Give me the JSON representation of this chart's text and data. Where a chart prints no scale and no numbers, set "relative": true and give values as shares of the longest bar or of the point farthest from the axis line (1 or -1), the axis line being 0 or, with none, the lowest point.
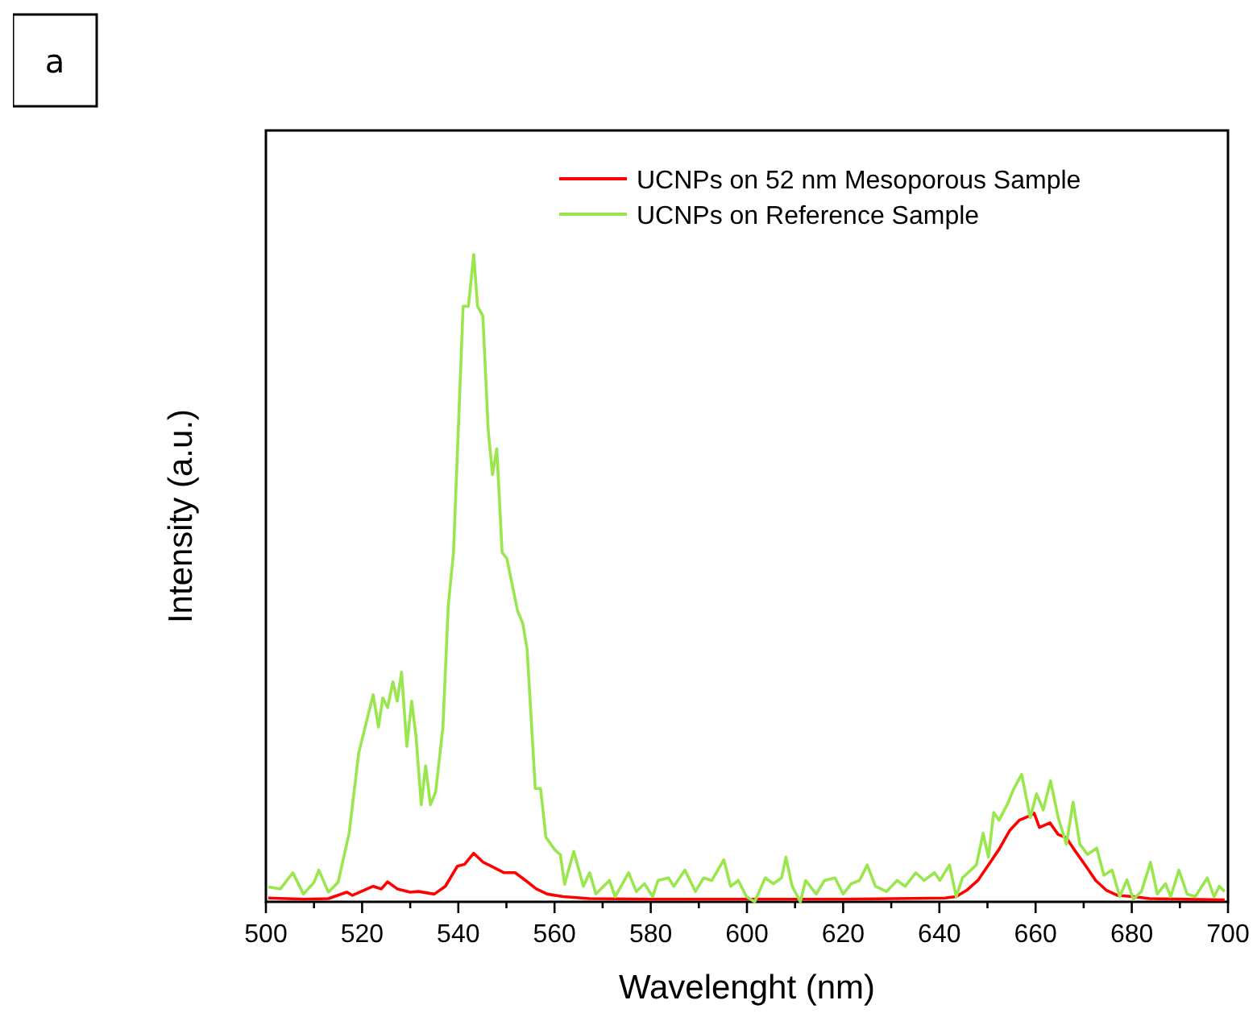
{
  "chart_data": {
    "type": "line",
    "relative": true,
    "xlabel": "Wavelenght (nm)",
    "ylabel": "Intensity (a.u.)",
    "annotations": [
      "a"
    ],
    "xlim": [
      500,
      700
    ],
    "xticks": [
      500,
      {
        "value": 510,
        "label": null
      },
      520,
      {
        "value": 530,
        "label": null
      },
      540,
      {
        "value": 550,
        "label": null
      },
      560,
      {
        "value": 570,
        "label": null
      },
      580,
      {
        "value": 590,
        "label": null
      },
      600,
      {
        "value": 610,
        "label": null
      },
      620,
      {
        "value": 630,
        "label": null
      },
      640,
      {
        "value": 650,
        "label": null
      },
      660,
      {
        "value": 670,
        "label": null
      },
      680,
      {
        "value": 690,
        "label": null
      },
      700
    ],
    "legend": "top right",
    "grid": false,
    "line_style": "solid",
    "series": [
      {
        "name": "UCNPs on 52 nm Mesoporous Sample",
        "color": "#ff0000",
        "x": [
          500.5,
          508,
          513,
          516.8,
          518,
          522.3,
          524,
          525.3,
          527.3,
          530,
          531.7,
          535,
          537.3,
          539.8,
          541.3,
          543.2,
          545.2,
          547.4,
          549.5,
          551.8,
          554,
          556.2,
          558.5,
          561.8,
          567.3,
          580,
          600,
          620,
          641.2,
          643.5,
          645.7,
          648,
          650.2,
          652.4,
          654.6,
          656.6,
          658.5,
          659.7,
          660.8,
          663,
          664.7,
          666.4,
          668,
          670.3,
          672.5,
          674.7,
          677,
          680.3,
          683.7,
          699.3
        ],
        "values": [
          0.006,
          0.004,
          0.005,
          0.015,
          0.01,
          0.024,
          0.02,
          0.031,
          0.02,
          0.015,
          0.016,
          0.012,
          0.024,
          0.055,
          0.058,
          0.075,
          0.061,
          0.053,
          0.045,
          0.045,
          0.033,
          0.02,
          0.012,
          0.008,
          0.005,
          0.004,
          0.004,
          0.004,
          0.006,
          0.008,
          0.018,
          0.033,
          0.057,
          0.081,
          0.11,
          0.126,
          0.132,
          0.137,
          0.115,
          0.122,
          0.104,
          0.099,
          0.081,
          0.057,
          0.033,
          0.018,
          0.01,
          0.008,
          0.005,
          0.003
        ]
      },
      {
        "name": "UCNPs on Reference Sample",
        "color": "#99e64d",
        "x": [
          500.5,
          503,
          505.6,
          507.8,
          510,
          511,
          513,
          515,
          517.3,
          519.3,
          522.3,
          523.4,
          524.3,
          525.3,
          526.4,
          527.3,
          528.2,
          529.3,
          530.3,
          531.2,
          532.3,
          533.2,
          534.2,
          535.3,
          536.8,
          537.9,
          539,
          541,
          542.1,
          543.2,
          544,
          545.1,
          546.2,
          547.1,
          548,
          549.1,
          550.1,
          551.2,
          552.3,
          553.4,
          554.3,
          556,
          557.1,
          558.2,
          560.1,
          561.2,
          562.1,
          564,
          566,
          567.3,
          568.6,
          571.4,
          572.6,
          575.4,
          577,
          578.7,
          580.4,
          581.5,
          583.7,
          584.8,
          587.1,
          589.3,
          591,
          592.7,
          595.2,
          596.6,
          598.2,
          599.9,
          601.6,
          603.8,
          605.5,
          607.2,
          608.1,
          609.4,
          611.1,
          612.2,
          614.4,
          616.1,
          618.3,
          620,
          621.7,
          623.4,
          625,
          626.7,
          629,
          631.2,
          632.9,
          635.1,
          636.8,
          639,
          640.1,
          642.1,
          643.5,
          644.8,
          647.7,
          649.1,
          650.2,
          651.3,
          652.4,
          654.1,
          655.5,
          657.1,
          658.9,
          660.2,
          661.6,
          663.1,
          664.7,
          666.4,
          667.8,
          669.2,
          670.8,
          672.7,
          674.2,
          675.9,
          677.5,
          679,
          680.3,
          682,
          683.9,
          685.3,
          687,
          688.1,
          689.8,
          691.5,
          693.2,
          695.7,
          697.1,
          698.2,
          699.3
        ],
        "values": [
          0.023,
          0.02,
          0.045,
          0.012,
          0.03,
          0.049,
          0.015,
          0.03,
          0.106,
          0.23,
          0.32,
          0.27,
          0.315,
          0.3,
          0.34,
          0.31,
          0.355,
          0.24,
          0.31,
          0.256,
          0.15,
          0.21,
          0.15,
          0.17,
          0.27,
          0.456,
          0.54,
          0.92,
          0.92,
          1,
          0.92,
          0.905,
          0.73,
          0.66,
          0.7,
          0.54,
          0.53,
          0.49,
          0.45,
          0.43,
          0.39,
          0.175,
          0.175,
          0.1,
          0.08,
          0.073,
          0.027,
          0.078,
          0.024,
          0.045,
          0.012,
          0.033,
          0.008,
          0.045,
          0.016,
          0.028,
          0.008,
          0.033,
          0.037,
          0.024,
          0.049,
          0.016,
          0.037,
          0.033,
          0.065,
          0.024,
          0.033,
          0.008,
          0,
          0.037,
          0.028,
          0.037,
          0.069,
          0.024,
          0,
          0.033,
          0.012,
          0.033,
          0.037,
          0.012,
          0.028,
          0.033,
          0.057,
          0.024,
          0.016,
          0.033,
          0.024,
          0.045,
          0.033,
          0.045,
          0.033,
          0.057,
          0.008,
          0.037,
          0.057,
          0.106,
          0.069,
          0.138,
          0.126,
          0.15,
          0.175,
          0.197,
          0.13,
          0.167,
          0.142,
          0.187,
          0.13,
          0.089,
          0.154,
          0.089,
          0.073,
          0.083,
          0.041,
          0.049,
          0.008,
          0.034,
          0.004,
          0.016,
          0.061,
          0.012,
          0.028,
          0.008,
          0.049,
          0.012,
          0.008,
          0.037,
          0.008,
          0.024,
          0.016
        ]
      }
    ]
  }
}
